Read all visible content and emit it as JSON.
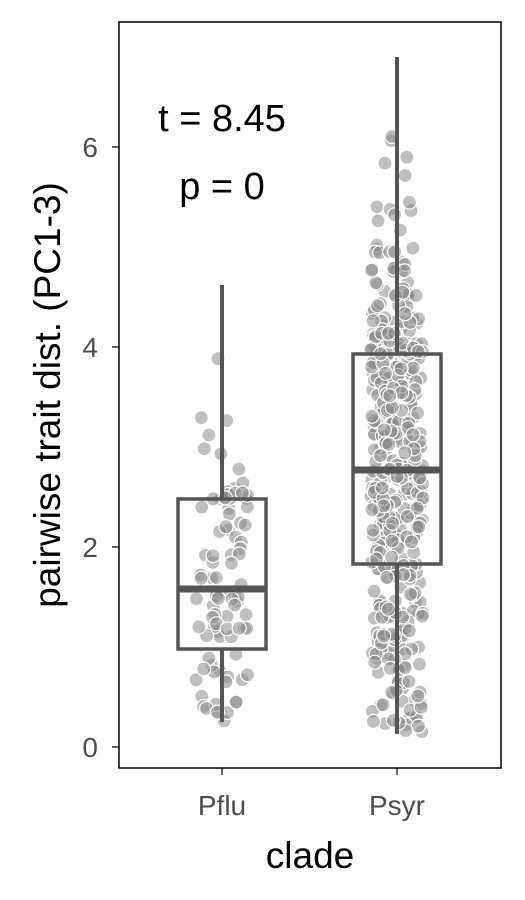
{
  "chart_data": {
    "type": "box",
    "xlabel": "clade",
    "ylabel": "pairwise trait dist. (PC1-3)",
    "categories": [
      "Pflu",
      "Psyr"
    ],
    "ylim": [
      -0.2,
      7.25
    ],
    "yticks": [
      0,
      2,
      4,
      6
    ],
    "grid": false,
    "annotations": [
      "t = 8.45",
      "p = 0"
    ],
    "boxes": [
      {
        "category": "Pflu",
        "whisker_low": 0.25,
        "q1": 0.98,
        "median": 1.58,
        "q3": 2.48,
        "whisker_high": 4.62,
        "n_points": 90
      },
      {
        "category": "Psyr",
        "whisker_low": 0.13,
        "q1": 1.83,
        "median": 2.77,
        "q3": 3.93,
        "whisker_high": 6.9,
        "n_points": 460
      }
    ],
    "colors": {
      "box": "#555555",
      "points": "#8a8a8a",
      "point_edge": "#ffffff",
      "frame": "#000000"
    }
  }
}
